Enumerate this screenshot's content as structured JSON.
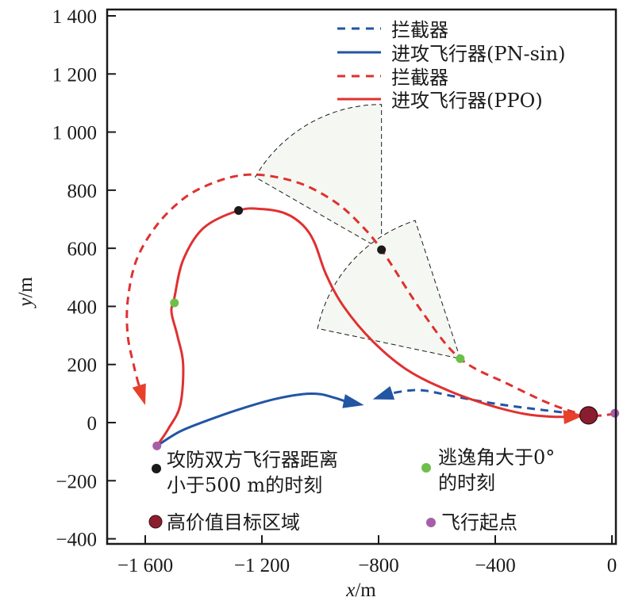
{
  "chart_data": {
    "type": "line",
    "title": "",
    "xlabel": "x/m",
    "ylabel": "y/m",
    "xlim": [
      -1740,
      20
    ],
    "ylim": [
      -415,
      1440
    ],
    "xticks": [
      -1600,
      -1200,
      -800,
      -400,
      0
    ],
    "xtick_labels": [
      "−1 600",
      "−1 200",
      "−800",
      "−400",
      "0"
    ],
    "yticks": [
      1400,
      1200,
      1000,
      800,
      600,
      400,
      200,
      0,
      -200,
      -400
    ],
    "ytick_labels": [
      "1 400",
      "1 200",
      "1 000",
      "800",
      "600",
      "400",
      "200",
      "0",
      "−200",
      "−400"
    ],
    "grid": false,
    "legend_position": "top-right",
    "series": [
      {
        "name": "拦截器",
        "group": "PN-sin",
        "style": "dashed",
        "color": "#2255a4",
        "x": [
          -80,
          -250,
          -400,
          -540,
          -640,
          -700,
          -760
        ],
        "y": [
          25,
          45,
          65,
          90,
          110,
          110,
          100
        ],
        "arrow": true,
        "arrow_tip": [
          -820,
          80
        ]
      },
      {
        "name": "进攻飞行器(PN-sin)",
        "group": "PN-sin",
        "style": "solid",
        "color": "#2255a4",
        "x": [
          -1560,
          -1480,
          -1380,
          -1280,
          -1160,
          -1060,
          -1000,
          -950,
          -910
        ],
        "y": [
          -80,
          -30,
          10,
          45,
          80,
          98,
          98,
          85,
          72
        ],
        "arrow": true,
        "arrow_tip": [
          -850,
          60
        ]
      },
      {
        "name": "拦截器",
        "group": "PPO",
        "style": "dashed",
        "color": "#e03030",
        "x": [
          10,
          -80,
          -200,
          -350,
          -520,
          -650,
          -790,
          -870,
          -950,
          -1060,
          -1180,
          -1280,
          -1380,
          -1470,
          -1560,
          -1630,
          -1660,
          -1660,
          -1640,
          -1625
        ],
        "y": [
          30,
          25,
          60,
          130,
          220,
          380,
          595,
          690,
          760,
          820,
          850,
          850,
          820,
          770,
          680,
          560,
          420,
          300,
          200,
          140
        ],
        "arrow": true,
        "arrow_tip": [
          -1600,
          60
        ]
      },
      {
        "name": "进攻飞行器(PPO)",
        "group": "PPO",
        "style": "solid",
        "color": "#e03030",
        "x": [
          -1560,
          -1520,
          -1480,
          -1470,
          -1490,
          -1510,
          -1500,
          -1470,
          -1400,
          -1280,
          -1200,
          -1120,
          -1060,
          -1020,
          -980,
          -920,
          -820,
          -700,
          -560,
          -420,
          -300,
          -200,
          -130
        ],
        "y": [
          -80,
          -20,
          60,
          200,
          300,
          380,
          430,
          560,
          670,
          730,
          735,
          720,
          680,
          620,
          510,
          400,
          280,
          180,
          110,
          60,
          30,
          20,
          22
        ],
        "arrow": true,
        "arrow_tip": [
          -95,
          25
        ]
      }
    ],
    "markers": [
      {
        "name": "攻防双方飞行器距离小于500 m的时刻",
        "color": "#1a1a1a",
        "points": [
          [
            -1280,
            730
          ],
          [
            -790,
            595
          ]
        ]
      },
      {
        "name": "逃逸角大于0°的时刻",
        "color": "#6cc04a",
        "points": [
          [
            -1500,
            412
          ],
          [
            -520,
            220
          ]
        ]
      },
      {
        "name": "高价值目标区域",
        "color": "#8b1e2e",
        "points": [
          [
            -80,
            25
          ]
        ]
      },
      {
        "name": "飞行起点",
        "color": "#a65ea8",
        "points": [
          [
            -1560,
            -80
          ],
          [
            10,
            32
          ]
        ]
      }
    ],
    "sectors": [
      {
        "center": [
          -790,
          595
        ],
        "radius": 500,
        "angle_start_deg": 90,
        "angle_end_deg": 150,
        "fill": "#f5f8f2",
        "stroke": "#1a1a1a"
      },
      {
        "center": [
          -520,
          220
        ],
        "radius": 500,
        "angle_start_deg": 108,
        "angle_end_deg": 168,
        "fill": "#f5f8f2",
        "stroke": "#1a1a1a"
      }
    ],
    "legend": [
      {
        "label": "拦截器",
        "style": "dashed",
        "color": "#2255a4"
      },
      {
        "label": "进攻飞行器(PN-sin)",
        "style": "solid",
        "color": "#2255a4"
      },
      {
        "label": "拦截器",
        "style": "dashed",
        "color": "#e03030"
      },
      {
        "label": "进攻飞行器(PPO)",
        "style": "solid",
        "color": "#e03030"
      }
    ],
    "annotations": {
      "close_range_line1": "攻防双方飞行器距离",
      "close_range_line2": "小于500 m的时刻",
      "escape_line1": "逃逸角大于0°",
      "escape_line2": "的时刻",
      "target_area": "高价值目标区域",
      "start_point": "飞行起点"
    }
  }
}
